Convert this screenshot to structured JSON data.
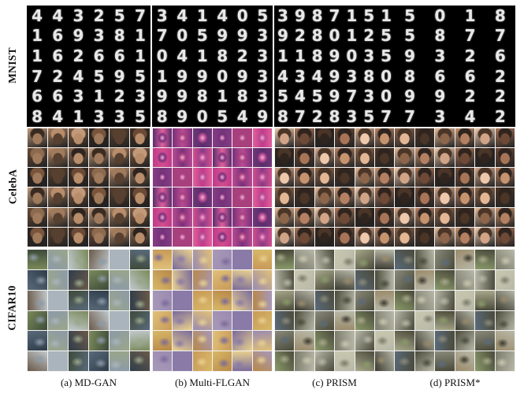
{
  "row_labels": [
    "MNIST",
    "CelebA",
    "CIFAR10"
  ],
  "captions": [
    "(a) MD-GAN",
    "(b) Multi-FLGAN",
    "(c) PRISM",
    "(d) PRISM*"
  ],
  "mnist_digits": {
    "md_gan": [
      [
        "4",
        "4",
        "3",
        "2",
        "5",
        "7"
      ],
      [
        "1",
        "6",
        "9",
        "3",
        "8",
        "1"
      ],
      [
        "1",
        "6",
        "2",
        "6",
        "6",
        "1"
      ],
      [
        "7",
        "2",
        "4",
        "5",
        "9",
        "5"
      ],
      [
        "6",
        "6",
        "3",
        "1",
        "2",
        "3"
      ],
      [
        "8",
        "4",
        "1",
        "3",
        "3",
        "5"
      ]
    ],
    "multi_flgan": [
      [
        "3",
        "4",
        "1",
        "4",
        "0",
        "5"
      ],
      [
        "7",
        "0",
        "5",
        "9",
        "9",
        "3"
      ],
      [
        "0",
        "4",
        "1",
        "8",
        "2",
        "3"
      ],
      [
        "1",
        "9",
        "9",
        "0",
        "9",
        "3"
      ],
      [
        "9",
        "9",
        "8",
        "1",
        "8",
        "3"
      ],
      [
        "8",
        "9",
        "0",
        "5",
        "4",
        "9"
      ]
    ],
    "prism": [
      [
        "3",
        "9",
        "8",
        "7",
        "1",
        "5",
        "1"
      ],
      [
        "9",
        "2",
        "8",
        "0",
        "1",
        "2",
        "5"
      ],
      [
        "1",
        "1",
        "8",
        "9",
        "0",
        "3",
        "5"
      ],
      [
        "4",
        "3",
        "4",
        "9",
        "3",
        "8",
        "0"
      ],
      [
        "5",
        "4",
        "5",
        "9",
        "7",
        "3",
        "0"
      ],
      [
        "8",
        "7",
        "2",
        "8",
        "3",
        "5",
        "7"
      ]
    ],
    "prism_star": [
      [
        "5",
        "0",
        "1",
        "8"
      ],
      [
        "5",
        "8",
        "7",
        "7"
      ],
      [
        "9",
        "3",
        "2",
        "6"
      ],
      [
        "8",
        "6",
        "6",
        "2"
      ],
      [
        "9",
        "9",
        "2",
        "2"
      ],
      [
        "7",
        "3",
        "4",
        "2"
      ]
    ]
  },
  "palettes": {
    "celeba_md": [
      "#6b4a36",
      "#a07a5c",
      "#3a2b22",
      "#c29a7a",
      "#57402f",
      "#8c6a4f",
      "#2e241f",
      "#b88d6b",
      "#79553c"
    ],
    "celeba_fl": [
      "#c03a8a",
      "#7a2f7a",
      "#e0609c",
      "#5a2c6c",
      "#a8407e",
      "#d24f8e",
      "#883a86",
      "#b84b92",
      "#6f3677"
    ],
    "celeba_prism": [
      "#a87457",
      "#d1a487",
      "#4a3527",
      "#edc8ab",
      "#6e4a36",
      "#8d654a",
      "#c6936f",
      "#2f241e",
      "#b48062",
      "#e3b795"
    ],
    "cifar_md": [
      "#5a6a7a",
      "#8c9aa8",
      "#3d4a3a",
      "#7a8a5a",
      "#aab4bc",
      "#2f3d4a",
      "#6a5a4a",
      "#9aa68a",
      "#c0c8cc"
    ],
    "cifar_fl": [
      "#d8b868",
      "#7a6a9a",
      "#c89a58",
      "#e0c078",
      "#8a7aa8",
      "#b88848",
      "#a898b8",
      "#e8d090",
      "#9a8ab0"
    ],
    "cifar_prism": [
      "#7a7a6a",
      "#a8a88a",
      "#4a4a3a",
      "#8a9a6a",
      "#c8c8b0",
      "#5a6a7a",
      "#9a8a6a",
      "#b8b8a8",
      "#3a3a30",
      "#8a8a7a"
    ]
  },
  "colors": {
    "background": "#ffffff",
    "mnist_bg": "#000000",
    "grid_line": "#f4f4f4",
    "text": "#111111"
  }
}
